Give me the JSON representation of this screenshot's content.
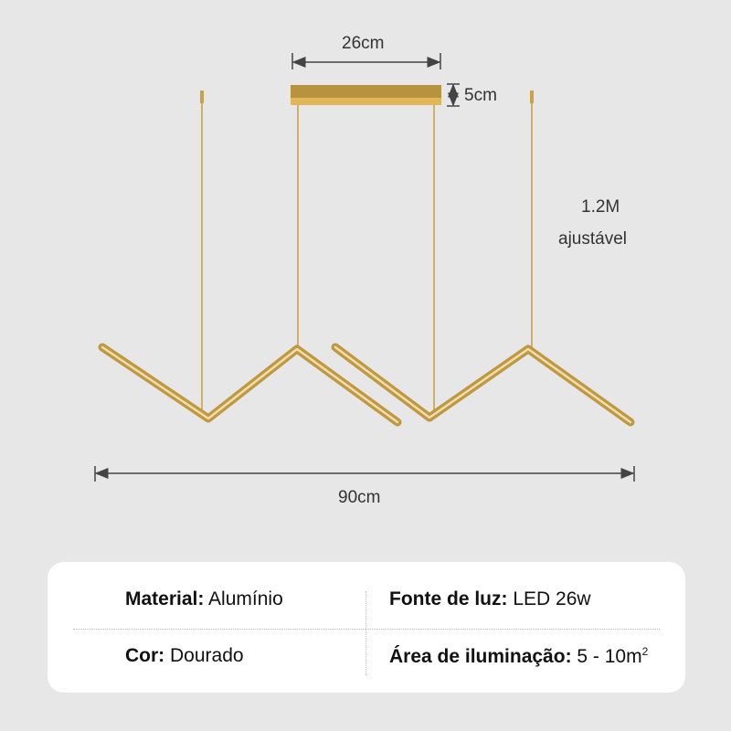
{
  "dimensions": {
    "canopy_width": "26cm",
    "canopy_height": "5cm",
    "cable_length_line1": "1.2M",
    "cable_length_line2": "ajustável",
    "total_width": "90cm"
  },
  "colors": {
    "gold": "#c9a24a",
    "background": "#e7e7e7"
  },
  "specs": {
    "material_label": "Material:",
    "material_value": "Alumínio",
    "light_label": "Fonte de luz:",
    "light_value": "LED 26w",
    "color_label": "Cor:",
    "color_value": "Dourado",
    "area_label": "Área de iluminação:",
    "area_value": "5 - 10m",
    "area_unit_sup": "2"
  }
}
